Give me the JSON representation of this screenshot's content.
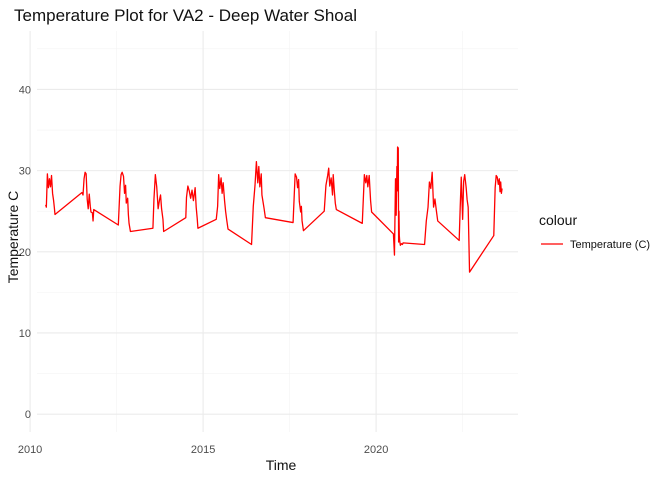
{
  "chart_data": {
    "type": "line",
    "title": "Temperature Plot for VA2 - Deep Water Shoal",
    "xlabel": "Time",
    "ylabel": "Temperature C",
    "xlim": [
      2010.2,
      2024.1
    ],
    "ylim": [
      -2.2,
      47.2
    ],
    "xticks": [
      2010,
      2015,
      2020
    ],
    "yticks": [
      0,
      10,
      20,
      30,
      40
    ],
    "grid": true,
    "legend": {
      "title": "colour",
      "position": "right"
    },
    "series": [
      {
        "name": "Temperature (C)",
        "color": "#ff0000",
        "x": [
          2010.45,
          2010.47,
          2010.5,
          2010.53,
          2010.56,
          2010.59,
          2010.62,
          2010.65,
          2010.68,
          2010.7,
          2010.72,
          2011.5,
          2011.53,
          2011.56,
          2011.59,
          2011.62,
          2011.65,
          2011.68,
          2011.71,
          2011.74,
          2011.76,
          2011.8,
          2011.82,
          2011.84,
          2012.55,
          2012.6,
          2012.63,
          2012.66,
          2012.7,
          2012.73,
          2012.76,
          2012.78,
          2012.82,
          2012.84,
          2012.86,
          2012.9,
          2013.55,
          2013.58,
          2013.62,
          2013.66,
          2013.7,
          2013.74,
          2013.77,
          2013.8,
          2013.84,
          2013.86,
          2014.5,
          2014.52,
          2014.56,
          2014.6,
          2014.64,
          2014.68,
          2014.72,
          2014.77,
          2014.8,
          2014.83,
          2014.85,
          2015.38,
          2015.42,
          2015.45,
          2015.48,
          2015.52,
          2015.55,
          2015.58,
          2015.62,
          2015.65,
          2015.68,
          2015.72,
          2016.4,
          2016.45,
          2016.5,
          2016.54,
          2016.58,
          2016.61,
          2016.64,
          2016.68,
          2016.7,
          2016.73,
          2016.76,
          2016.8,
          2017.6,
          2017.63,
          2017.66,
          2017.7,
          2017.73,
          2017.76,
          2017.78,
          2017.82,
          2017.84,
          2017.86,
          2017.9,
          2018.5,
          2018.55,
          2018.6,
          2018.63,
          2018.66,
          2018.7,
          2018.74,
          2018.76,
          2018.79,
          2018.82,
          2018.85,
          2019.6,
          2019.63,
          2019.66,
          2019.7,
          2019.73,
          2019.76,
          2019.8,
          2019.84,
          2019.87,
          2020.5,
          2020.53,
          2020.56,
          2020.58,
          2020.6,
          2020.61,
          2020.62,
          2020.63,
          2020.64,
          2020.65,
          2020.66,
          2020.67,
          2020.68,
          2020.7,
          2020.73,
          2020.76,
          2020.78,
          2021.4,
          2021.45,
          2021.5,
          2021.54,
          2021.58,
          2021.62,
          2021.66,
          2021.7,
          2021.74,
          2021.78,
          2022.4,
          2022.43,
          2022.46,
          2022.5,
          2022.53,
          2022.56,
          2022.6,
          2022.63,
          2022.66,
          2022.7,
          2023.4,
          2023.44,
          2023.47,
          2023.5,
          2023.53,
          2023.56,
          2023.58,
          2023.6,
          2023.62,
          2023.64
        ],
        "y": [
          25.8,
          25.5,
          29.6,
          27.9,
          29.0,
          28.0,
          29.4,
          27.2,
          26.3,
          25.5,
          24.6,
          27.3,
          27.0,
          29.0,
          29.8,
          29.6,
          26.5,
          25.3,
          27.1,
          25.6,
          24.9,
          24.8,
          23.8,
          25.2,
          23.3,
          28.1,
          29.5,
          29.8,
          29.3,
          27.2,
          28.2,
          26.0,
          26.6,
          24.6,
          23.5,
          22.5,
          22.9,
          26.5,
          29.5,
          28.0,
          25.3,
          26.4,
          27.0,
          25.3,
          24.0,
          22.5,
          24.2,
          26.7,
          28.1,
          27.5,
          26.6,
          27.6,
          26.3,
          27.9,
          25.5,
          24.1,
          22.9,
          24.0,
          25.6,
          29.5,
          27.8,
          29.1,
          27.2,
          28.5,
          26.3,
          25.0,
          24.0,
          22.8,
          20.9,
          25.6,
          28.2,
          31.1,
          28.5,
          30.5,
          28.0,
          29.6,
          27.0,
          26.2,
          25.4,
          24.2,
          23.6,
          26.6,
          29.6,
          29.2,
          27.9,
          28.9,
          26.2,
          24.9,
          25.6,
          23.8,
          22.6,
          25.0,
          28.2,
          29.4,
          30.3,
          28.1,
          29.1,
          27.0,
          29.5,
          27.6,
          26.0,
          25.2,
          23.5,
          26.5,
          29.5,
          28.5,
          29.4,
          28.0,
          29.4,
          26.3,
          24.9,
          22.2,
          19.6,
          29.0,
          24.5,
          30.5,
          27.5,
          32.9,
          29.0,
          32.8,
          21.2,
          25.0,
          22.0,
          21.4,
          20.8,
          21.0,
          20.9,
          21.1,
          20.9,
          23.8,
          25.5,
          28.6,
          27.8,
          29.8,
          25.5,
          26.5,
          25.1,
          23.8,
          21.4,
          25.5,
          29.2,
          24.0,
          28.7,
          29.5,
          28.0,
          26.4,
          25.5,
          17.5,
          22.0,
          27.9,
          29.4,
          29.2,
          28.3,
          29.0,
          27.4,
          28.6,
          27.2,
          27.8
        ]
      }
    ]
  }
}
